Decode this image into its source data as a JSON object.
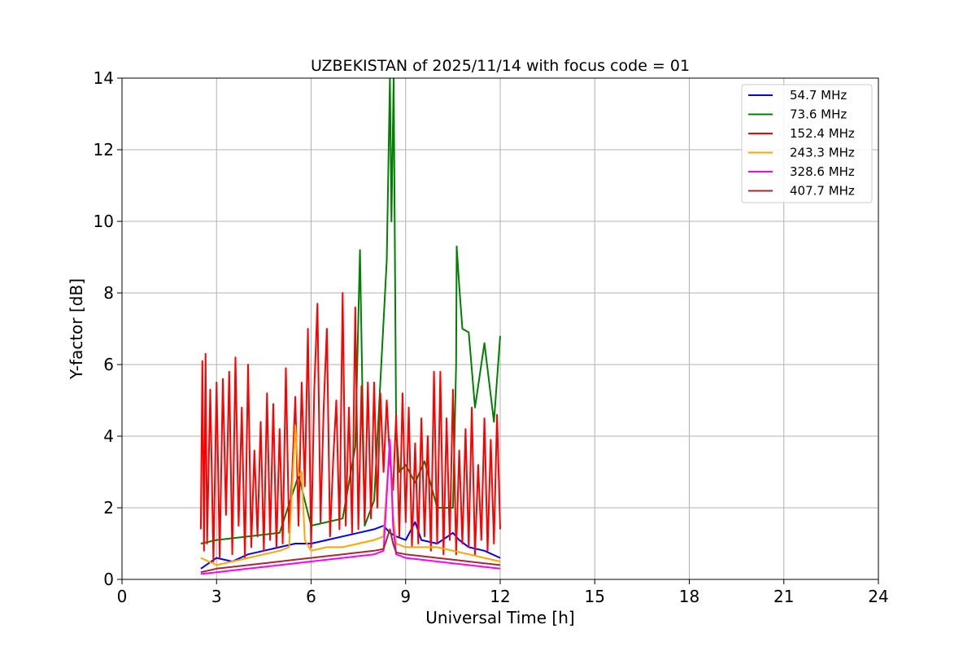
{
  "chart_data": {
    "type": "line",
    "title": "UZBEKISTAN of 2025/11/14 with focus code = 01",
    "xlabel": "Universal Time [h]",
    "ylabel": "Y-factor [dB]",
    "xlim": [
      0,
      24
    ],
    "ylim": [
      0,
      14
    ],
    "xticks": [
      0,
      3,
      6,
      9,
      12,
      15,
      18,
      21,
      24
    ],
    "yticks": [
      0,
      2,
      4,
      6,
      8,
      10,
      12,
      14
    ],
    "grid": true,
    "legend_position": "top-right",
    "series": [
      {
        "name": " 54.7 MHz",
        "color": "#0000ff",
        "x": [
          2.5,
          3.0,
          3.5,
          4.0,
          4.5,
          5.0,
          5.5,
          6.0,
          6.5,
          7.0,
          7.5,
          8.0,
          8.3,
          8.5,
          8.7,
          9.0,
          9.3,
          9.5,
          10.0,
          10.5,
          10.7,
          11.0,
          11.5,
          12.0
        ],
        "values": [
          0.3,
          0.6,
          0.5,
          0.7,
          0.8,
          0.9,
          1.0,
          1.0,
          1.1,
          1.2,
          1.3,
          1.4,
          1.5,
          1.3,
          1.2,
          1.1,
          1.6,
          1.1,
          1.0,
          1.3,
          1.1,
          0.9,
          0.8,
          0.6
        ]
      },
      {
        "name": " 73.6 MHz",
        "color": "#008000",
        "x": [
          2.5,
          3.0,
          4.0,
          5.0,
          5.6,
          6.0,
          7.0,
          7.4,
          7.55,
          7.7,
          8.0,
          8.4,
          8.5,
          8.55,
          8.62,
          8.7,
          8.8,
          9.0,
          9.3,
          9.6,
          10.0,
          10.5,
          10.6,
          10.62,
          10.7,
          10.8,
          11.0,
          11.2,
          11.5,
          11.8,
          12.0
        ],
        "values": [
          1.0,
          1.1,
          1.2,
          1.3,
          2.9,
          1.5,
          1.7,
          3.7,
          9.2,
          1.5,
          2.2,
          8.9,
          14.0,
          10.0,
          14.0,
          4.2,
          3.0,
          3.2,
          2.7,
          3.3,
          2.0,
          2.0,
          6.0,
          9.3,
          8.2,
          7.0,
          6.9,
          4.8,
          6.6,
          4.4,
          6.8
        ]
      },
      {
        "name": "152.4 MHz",
        "color": "#ff0000",
        "x": [
          2.5,
          2.55,
          2.6,
          2.65,
          2.7,
          2.8,
          2.9,
          3.0,
          3.1,
          3.2,
          3.3,
          3.4,
          3.5,
          3.6,
          3.7,
          3.8,
          3.9,
          4.0,
          4.1,
          4.2,
          4.3,
          4.4,
          4.5,
          4.6,
          4.7,
          4.8,
          4.9,
          5.0,
          5.1,
          5.2,
          5.3,
          5.4,
          5.5,
          5.6,
          5.7,
          5.8,
          5.9,
          6.0,
          6.1,
          6.2,
          6.3,
          6.4,
          6.5,
          6.6,
          6.7,
          6.8,
          6.9,
          7.0,
          7.1,
          7.2,
          7.3,
          7.4,
          7.5,
          7.6,
          7.7,
          7.8,
          7.9,
          8.0,
          8.1,
          8.2,
          8.3,
          8.4,
          8.5,
          8.6,
          8.7,
          8.8,
          8.9,
          9.0,
          9.1,
          9.2,
          9.3,
          9.4,
          9.5,
          9.6,
          9.7,
          9.8,
          9.9,
          10.0,
          10.1,
          10.2,
          10.3,
          10.4,
          10.5,
          10.6,
          10.7,
          10.8,
          10.9,
          11.0,
          11.1,
          11.2,
          11.3,
          11.4,
          11.5,
          11.6,
          11.7,
          11.8,
          11.9,
          12.0
        ],
        "values": [
          1.4,
          6.1,
          0.8,
          6.3,
          1.0,
          5.3,
          0.5,
          5.5,
          0.6,
          5.6,
          1.8,
          5.8,
          0.7,
          6.2,
          1.5,
          4.8,
          0.6,
          6.0,
          0.9,
          3.6,
          1.2,
          4.4,
          0.8,
          5.2,
          1.1,
          4.9,
          0.9,
          4.2,
          1.0,
          5.9,
          1.3,
          3.0,
          5.1,
          1.5,
          5.5,
          2.6,
          7.0,
          0.9,
          5.3,
          7.7,
          1.6,
          4.8,
          7.0,
          1.2,
          3.3,
          5.0,
          1.4,
          8.0,
          1.5,
          4.8,
          1.3,
          7.6,
          1.4,
          5.4,
          1.6,
          5.5,
          1.7,
          5.5,
          2.0,
          5.2,
          3.0,
          5.0,
          3.3,
          2.5,
          4.6,
          1.2,
          5.2,
          1.6,
          4.8,
          0.9,
          3.8,
          1.0,
          4.5,
          1.2,
          4.0,
          0.8,
          5.8,
          1.0,
          5.8,
          0.7,
          4.5,
          1.1,
          5.3,
          0.7,
          3.6,
          1.0,
          4.2,
          0.9,
          4.8,
          0.7,
          3.2,
          1.1,
          4.5,
          0.8,
          3.9,
          1.0,
          4.6,
          1.4
        ]
      },
      {
        "name": "243.3 MHz",
        "color": "#ffa500",
        "x": [
          2.5,
          3.0,
          3.5,
          4.0,
          4.5,
          5.0,
          5.3,
          5.5,
          5.6,
          5.7,
          5.8,
          6.0,
          6.5,
          7.0,
          7.5,
          8.0,
          8.3,
          8.5,
          8.6,
          8.7,
          9.0,
          9.5,
          10.0,
          10.5,
          11.0,
          11.5,
          12.0
        ],
        "values": [
          0.6,
          0.4,
          0.5,
          0.6,
          0.7,
          0.8,
          0.9,
          4.3,
          2.9,
          3.0,
          1.1,
          0.8,
          0.9,
          0.9,
          1.0,
          1.1,
          1.2,
          3.9,
          1.8,
          1.0,
          0.9,
          0.9,
          0.9,
          0.8,
          0.7,
          0.6,
          0.5
        ]
      },
      {
        "name": "328.6 MHz",
        "color": "#ff00ff",
        "x": [
          2.5,
          3.0,
          3.5,
          4.0,
          4.5,
          5.0,
          5.5,
          6.0,
          6.5,
          7.0,
          7.5,
          8.0,
          8.3,
          8.5,
          8.6,
          8.7,
          9.0,
          9.5,
          10.0,
          10.5,
          11.0,
          11.5,
          12.0
        ],
        "values": [
          0.15,
          0.2,
          0.25,
          0.3,
          0.35,
          0.4,
          0.45,
          0.5,
          0.55,
          0.6,
          0.65,
          0.7,
          0.8,
          3.9,
          1.5,
          0.7,
          0.6,
          0.55,
          0.5,
          0.45,
          0.4,
          0.35,
          0.3
        ]
      },
      {
        "name": "407.7 MHz",
        "color": "#a52a2a",
        "x": [
          2.5,
          3.0,
          3.5,
          4.0,
          4.5,
          5.0,
          5.5,
          6.0,
          6.5,
          7.0,
          7.5,
          8.0,
          8.3,
          8.5,
          8.6,
          8.7,
          9.0,
          9.5,
          10.0,
          10.5,
          11.0,
          11.5,
          12.0
        ],
        "values": [
          0.2,
          0.3,
          0.35,
          0.4,
          0.45,
          0.5,
          0.55,
          0.6,
          0.65,
          0.7,
          0.75,
          0.8,
          0.85,
          1.4,
          1.0,
          0.75,
          0.7,
          0.65,
          0.6,
          0.55,
          0.5,
          0.45,
          0.4
        ]
      }
    ]
  }
}
